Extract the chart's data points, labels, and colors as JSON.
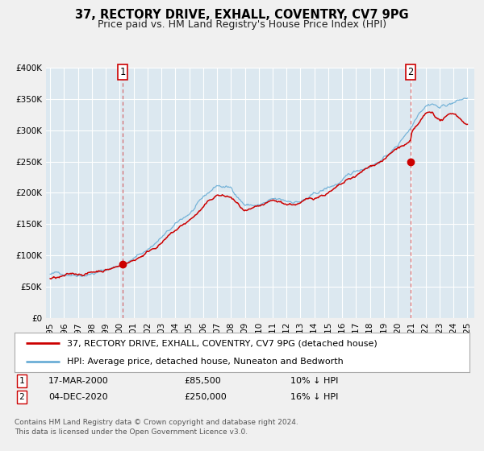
{
  "title": "37, RECTORY DRIVE, EXHALL, COVENTRY, CV7 9PG",
  "subtitle": "Price paid vs. HM Land Registry's House Price Index (HPI)",
  "ylim": [
    0,
    400000
  ],
  "xlim_start": 1994.7,
  "xlim_end": 2025.5,
  "yticks": [
    0,
    50000,
    100000,
    150000,
    200000,
    250000,
    300000,
    350000,
    400000
  ],
  "ytick_labels": [
    "£0",
    "£50K",
    "£100K",
    "£150K",
    "£200K",
    "£250K",
    "£300K",
    "£350K",
    "£400K"
  ],
  "xticks": [
    1995,
    1996,
    1997,
    1998,
    1999,
    2000,
    2001,
    2002,
    2003,
    2004,
    2005,
    2006,
    2007,
    2008,
    2009,
    2010,
    2011,
    2012,
    2013,
    2014,
    2015,
    2016,
    2017,
    2018,
    2019,
    2020,
    2021,
    2022,
    2023,
    2024,
    2025
  ],
  "fig_bg_color": "#f0f0f0",
  "plot_bg_color": "#dce8f0",
  "grid_color": "#ffffff",
  "hpi_line_color": "#6baed6",
  "price_line_color": "#cc0000",
  "vline_color": "#cc0000",
  "marker1_x": 2000.21,
  "marker1_y": 85500,
  "marker2_x": 2020.92,
  "marker2_y": 250000,
  "sale1_date": "17-MAR-2000",
  "sale1_price": "£85,500",
  "sale1_hpi": "10% ↓ HPI",
  "sale2_date": "04-DEC-2020",
  "sale2_price": "£250,000",
  "sale2_hpi": "16% ↓ HPI",
  "legend_label1": "37, RECTORY DRIVE, EXHALL, COVENTRY, CV7 9PG (detached house)",
  "legend_label2": "HPI: Average price, detached house, Nuneaton and Bedworth",
  "footer": "Contains HM Land Registry data © Crown copyright and database right 2024.\nThis data is licensed under the Open Government Licence v3.0.",
  "title_fontsize": 10.5,
  "subtitle_fontsize": 9,
  "tick_fontsize": 7.5,
  "legend_fontsize": 8,
  "table_fontsize": 8,
  "footer_fontsize": 6.5
}
